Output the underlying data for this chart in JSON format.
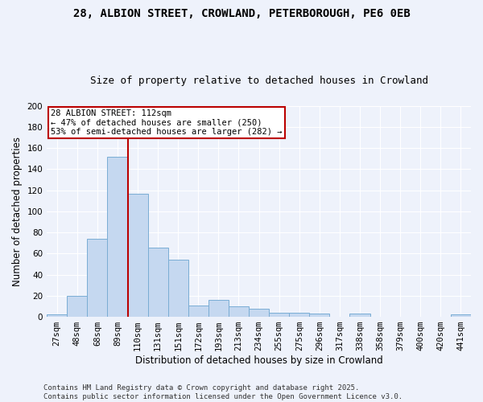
{
  "title_line1": "28, ALBION STREET, CROWLAND, PETERBOROUGH, PE6 0EB",
  "title_line2": "Size of property relative to detached houses in Crowland",
  "xlabel": "Distribution of detached houses by size in Crowland",
  "ylabel": "Number of detached properties",
  "categories": [
    "27sqm",
    "48sqm",
    "68sqm",
    "89sqm",
    "110sqm",
    "131sqm",
    "151sqm",
    "172sqm",
    "193sqm",
    "213sqm",
    "234sqm",
    "255sqm",
    "275sqm",
    "296sqm",
    "317sqm",
    "338sqm",
    "358sqm",
    "379sqm",
    "400sqm",
    "420sqm",
    "441sqm"
  ],
  "values": [
    2,
    20,
    74,
    152,
    117,
    66,
    54,
    11,
    16,
    10,
    8,
    4,
    4,
    3,
    0,
    3,
    0,
    0,
    0,
    0,
    2
  ],
  "bar_color": "#c5d8f0",
  "bar_edge_color": "#7aadd4",
  "vline_x": 3.5,
  "vline_color": "#bb0000",
  "annotation_text": "28 ALBION STREET: 112sqm\n← 47% of detached houses are smaller (250)\n53% of semi-detached houses are larger (282) →",
  "annotation_box_color": "#ffffff",
  "annotation_box_edge": "#bb0000",
  "ylim": [
    0,
    200
  ],
  "yticks": [
    0,
    20,
    40,
    60,
    80,
    100,
    120,
    140,
    160,
    180,
    200
  ],
  "footer_line1": "Contains HM Land Registry data © Crown copyright and database right 2025.",
  "footer_line2": "Contains public sector information licensed under the Open Government Licence v3.0.",
  "bg_color": "#eef2fb",
  "grid_color": "#ffffff",
  "title_fontsize": 10,
  "subtitle_fontsize": 9,
  "axis_label_fontsize": 8.5,
  "tick_fontsize": 7.5,
  "footer_fontsize": 6.5,
  "annotation_fontsize": 7.5
}
